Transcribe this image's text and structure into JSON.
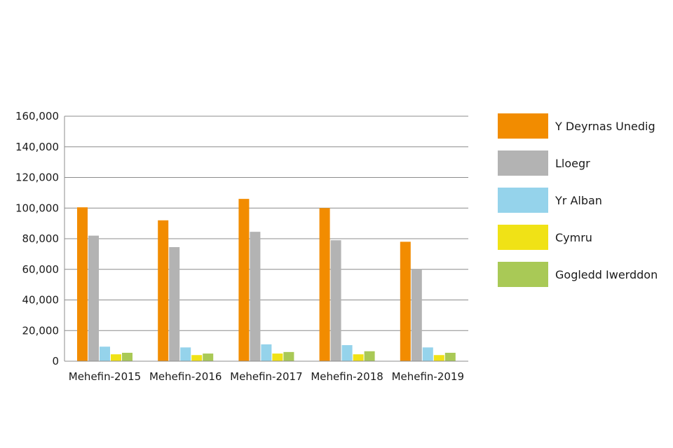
{
  "chart_data": {
    "type": "bar",
    "title": "",
    "xlabel": "",
    "ylabel": "",
    "ylim": [
      0,
      160000
    ],
    "yticks": [
      0,
      20000,
      40000,
      60000,
      80000,
      100000,
      120000,
      140000,
      160000
    ],
    "ytick_labels": [
      "0",
      "20,000",
      "40,000",
      "60,000",
      "80,000",
      "100,000",
      "120,000",
      "140,000",
      "160,000"
    ],
    "grid": "horizontal",
    "legend_position": "right",
    "categories": [
      "Mehefin-2015",
      "Mehefin-2016",
      "Mehefin-2017",
      "Mehefin-2018",
      "Mehefin-2019"
    ],
    "series": [
      {
        "name": "Y Deyrnas Unedig",
        "color": "#f28c00",
        "values": [
          100500,
          92000,
          106000,
          100000,
          78000
        ]
      },
      {
        "name": "Lloegr",
        "color": "#b3b3b3",
        "values": [
          82000,
          74500,
          84500,
          79000,
          60000
        ]
      },
      {
        "name": "Yr Alban",
        "color": "#95d3eb",
        "values": [
          9500,
          9000,
          11000,
          10500,
          9000
        ]
      },
      {
        "name": "Cymru",
        "color": "#f0e216",
        "values": [
          4500,
          4000,
          5000,
          4500,
          4000
        ]
      },
      {
        "name": "Gogledd Iwerddon",
        "color": "#a9c956",
        "values": [
          5500,
          5000,
          6000,
          6500,
          5500
        ]
      }
    ]
  }
}
